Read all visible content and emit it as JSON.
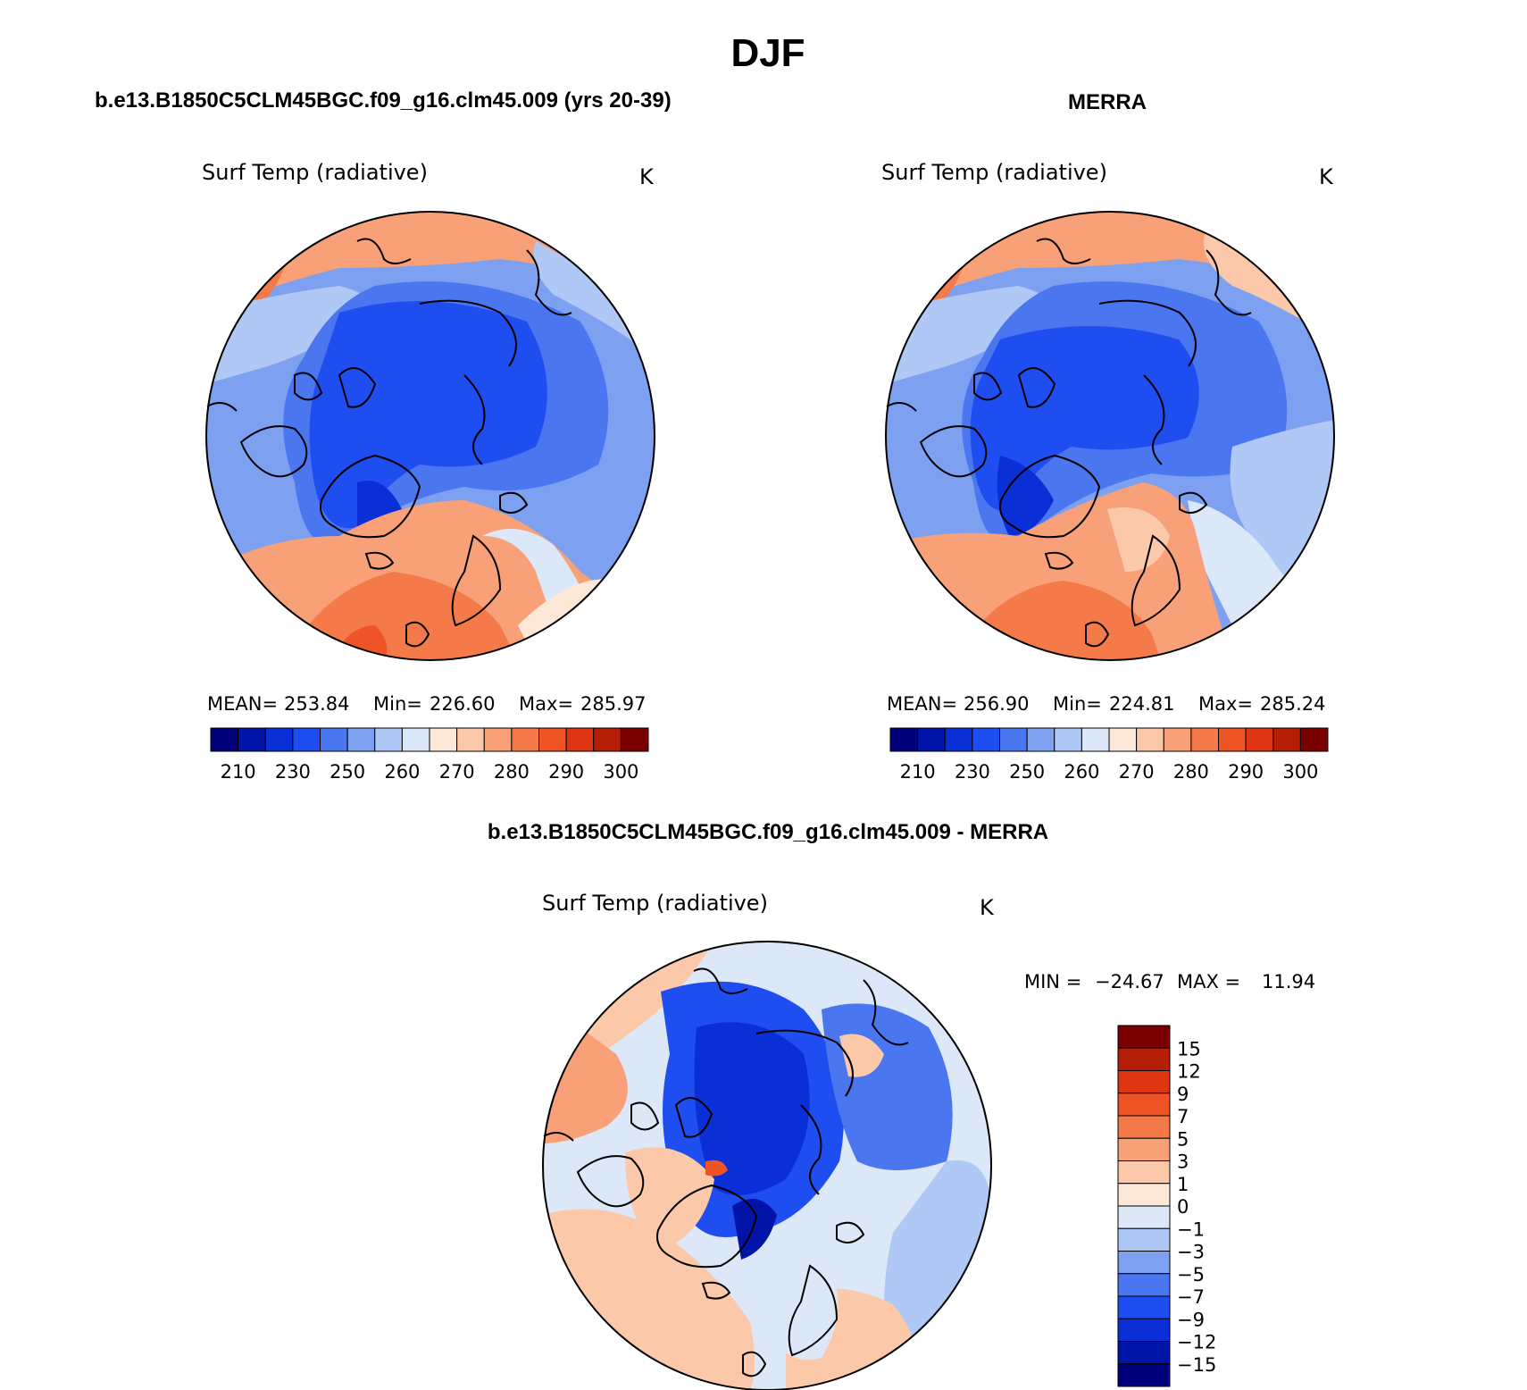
{
  "figure_title": "DJF",
  "colors": {
    "temp_scale": [
      "#00007a",
      "#0014a8",
      "#0a2fd6",
      "#1f4ef0",
      "#4a76f0",
      "#7ea0f0",
      "#b0c8f5",
      "#dce8f8",
      "#fde8d8",
      "#fcc8aa",
      "#f8a078",
      "#f47a4a",
      "#ef5426",
      "#dd3412",
      "#b51e06",
      "#7a0000"
    ],
    "diff_scale": [
      "#00007a",
      "#0014a8",
      "#0a2fd6",
      "#1f4ef0",
      "#4a76f0",
      "#7ea0f0",
      "#b0c8f5",
      "#dce8f8",
      "#fde8d8",
      "#fcc8aa",
      "#f8a078",
      "#f47a4a",
      "#ef5426",
      "#dd3412",
      "#b51e06",
      "#7a0000"
    ],
    "coast": "#000000"
  },
  "chart_data": [
    {
      "type": "heatmap",
      "id": "model",
      "title": "b.e13.B1850C5CLM45BGC.f09_g16.clm45.009 (yrs 20-39)",
      "variable": "Surf Temp (radiative)",
      "units": "K",
      "projection": "north-polar-stereographic",
      "stats": {
        "mean_label": "MEAN=",
        "mean": "253.84",
        "min_label": "Min=",
        "min": "226.60",
        "max_label": "Max=",
        "max": "285.97"
      },
      "colorbar": {
        "orientation": "horizontal",
        "bin_count": 16,
        "tick_labels": [
          "210",
          "230",
          "250",
          "260",
          "270",
          "280",
          "290",
          "300"
        ]
      }
    },
    {
      "type": "heatmap",
      "id": "obs",
      "title": "MERRA",
      "variable": "Surf Temp (radiative)",
      "units": "K",
      "projection": "north-polar-stereographic",
      "stats": {
        "mean_label": "MEAN=",
        "mean": "256.90",
        "min_label": "Min=",
        "min": "224.81",
        "max_label": "Max=",
        "max": "285.24"
      },
      "colorbar": {
        "orientation": "horizontal",
        "bin_count": 16,
        "tick_labels": [
          "210",
          "230",
          "250",
          "260",
          "270",
          "280",
          "290",
          "300"
        ]
      }
    },
    {
      "type": "heatmap",
      "id": "diff",
      "title": "b.e13.B1850C5CLM45BGC.f09_g16.clm45.009 - MERRA",
      "variable": "Surf Temp (radiative)",
      "units": "K",
      "projection": "north-polar-stereographic",
      "stats": {
        "min_label": "MIN =",
        "min": "−24.67",
        "max_label": "MAX =",
        "max": "11.94"
      },
      "colorbar": {
        "orientation": "vertical",
        "bin_count": 16,
        "tick_labels": [
          "15",
          "12",
          "9",
          "7",
          "5",
          "3",
          "1",
          "0",
          "−1",
          "−3",
          "−5",
          "−7",
          "−9",
          "−12",
          "−15"
        ]
      }
    }
  ]
}
